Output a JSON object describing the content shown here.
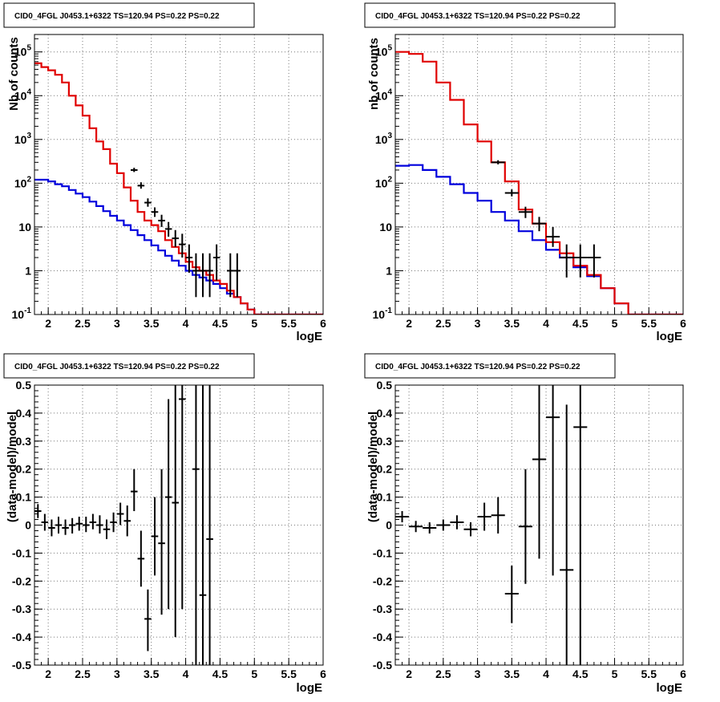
{
  "colors": {
    "data": "#000000",
    "model_total": "#e00000",
    "model_source": "#0000dd",
    "grid": "#777777",
    "frame": "#000000"
  },
  "chart_data": [
    {
      "type": "histogram",
      "title": "CID0_4FGL J0453.1+6322 TS=120.94 PS=0.22 PS=0.22",
      "xlabel": "logE",
      "ylabel": "Nb of counts",
      "xscale": "linear",
      "yscale": "log",
      "xlim": [
        1.8,
        6.0
      ],
      "ylim": [
        0.1,
        250000
      ],
      "xticks": [
        "2",
        "2.5",
        "3",
        "3.5",
        "4",
        "4.5",
        "5",
        "5.5",
        "6"
      ],
      "yticks": [
        "10^-1",
        "1",
        "10",
        "10^2",
        "10^3",
        "10^4",
        "10^5"
      ],
      "grid": true,
      "series": [
        {
          "kind": "model_total",
          "bin_edges": [
            1.8,
            1.9,
            2.0,
            2.1,
            2.2,
            2.3,
            2.4,
            2.5,
            2.6,
            2.7,
            2.8,
            2.9,
            3.0,
            3.1,
            3.2,
            3.3,
            3.4,
            3.5,
            3.6,
            3.7,
            3.8,
            3.9,
            4.0,
            4.1,
            4.2,
            4.3,
            4.4,
            4.5,
            4.6,
            4.7,
            4.8,
            4.9,
            5.0,
            5.1,
            5.2,
            5.3,
            5.4,
            5.5,
            5.6,
            5.7,
            5.8,
            5.9,
            6.0
          ],
          "values": [
            55000,
            45000,
            38000,
            30000,
            20000,
            10000,
            6000,
            3500,
            1800,
            900,
            600,
            280,
            170,
            80,
            40,
            22,
            14,
            11,
            8,
            5,
            3.5,
            2.5,
            1.6,
            1.2,
            1.0,
            0.8,
            0.6,
            0.5,
            0.35,
            0.25,
            0.18,
            0.13,
            0.1,
            0.1,
            0.1,
            0.1,
            0.1,
            0.1,
            0.1,
            0.1,
            0.1,
            0.1
          ]
        },
        {
          "kind": "model_source",
          "bin_edges": [
            1.8,
            1.9,
            2.0,
            2.1,
            2.2,
            2.3,
            2.4,
            2.5,
            2.6,
            2.7,
            2.8,
            2.9,
            3.0,
            3.1,
            3.2,
            3.3,
            3.4,
            3.5,
            3.6,
            3.7,
            3.8,
            3.9,
            4.0,
            4.1,
            4.2,
            4.3,
            4.4,
            4.5,
            4.6,
            4.7,
            4.8,
            4.9,
            5.0,
            5.1,
            5.2,
            5.3,
            5.4,
            5.5,
            5.6,
            5.7,
            5.8,
            5.9,
            6.0
          ],
          "values": [
            120,
            120,
            110,
            95,
            85,
            70,
            58,
            48,
            38,
            30,
            23,
            18,
            14,
            11,
            8.5,
            6.5,
            5,
            3.8,
            2.9,
            2.2,
            1.7,
            1.3,
            1.0,
            0.8,
            0.7,
            0.6,
            0.5,
            0.4,
            0.3,
            0.25,
            0.18,
            0.13,
            0.1,
            0.1,
            0.1,
            0.1,
            0.1,
            0.1,
            0.1,
            0.1,
            0.1,
            0.1
          ]
        },
        {
          "kind": "data",
          "points": [
            {
              "x": 3.25,
              "y": 200,
              "lo": 180,
              "hi": 225,
              "xerr": 0.05
            },
            {
              "x": 3.35,
              "y": 88,
              "lo": 75,
              "hi": 105,
              "xerr": 0.05
            },
            {
              "x": 3.45,
              "y": 36,
              "lo": 29,
              "hi": 45,
              "xerr": 0.05
            },
            {
              "x": 3.55,
              "y": 22,
              "lo": 17,
              "hi": 28,
              "xerr": 0.05
            },
            {
              "x": 3.65,
              "y": 14,
              "lo": 10,
              "hi": 19,
              "xerr": 0.05
            },
            {
              "x": 3.75,
              "y": 9,
              "lo": 6,
              "hi": 13,
              "xerr": 0.05
            },
            {
              "x": 3.85,
              "y": 5.5,
              "lo": 3.5,
              "hi": 8.5,
              "xerr": 0.05
            },
            {
              "x": 3.95,
              "y": 4,
              "lo": 2,
              "hi": 7,
              "xerr": 0.05
            },
            {
              "x": 4.05,
              "y": 2,
              "lo": 0.9,
              "hi": 4,
              "xerr": 0.05
            },
            {
              "x": 4.15,
              "y": 1,
              "lo": 0.25,
              "hi": 2.5,
              "xerr": 0.05
            },
            {
              "x": 4.25,
              "y": 1,
              "lo": 0.25,
              "hi": 2.5,
              "xerr": 0.05
            },
            {
              "x": 4.35,
              "y": 1,
              "lo": 0.25,
              "hi": 2.5,
              "xerr": 0.05
            },
            {
              "x": 4.45,
              "y": 2,
              "lo": 0.6,
              "hi": 4,
              "xerr": 0.05
            },
            {
              "x": 4.65,
              "y": 1,
              "lo": 0.25,
              "hi": 2.5,
              "xerr": 0.05
            },
            {
              "x": 4.75,
              "y": 1,
              "lo": 0.25,
              "hi": 2.5,
              "xerr": 0.05
            }
          ]
        }
      ]
    },
    {
      "type": "histogram",
      "title": "CID0_4FGL J0453.1+6322 TS=120.94 PS=0.22 PS=0.22",
      "xlabel": "logE",
      "ylabel": "nb of counts",
      "xscale": "linear",
      "yscale": "log",
      "xlim": [
        1.8,
        6.0
      ],
      "ylim": [
        0.1,
        250000
      ],
      "xticks": [
        "2",
        "2.5",
        "3",
        "3.5",
        "4",
        "4.5",
        "5",
        "5.5",
        "6"
      ],
      "yticks": [
        "10^-1",
        "1",
        "10",
        "10^2",
        "10^3",
        "10^4",
        "10^5"
      ],
      "grid": true,
      "series": [
        {
          "kind": "model_total",
          "bin_edges": [
            1.8,
            2.0,
            2.2,
            2.4,
            2.6,
            2.8,
            3.0,
            3.2,
            3.4,
            3.6,
            3.8,
            4.0,
            4.2,
            4.4,
            4.6,
            4.8,
            5.0,
            5.2,
            5.4,
            5.6,
            5.8,
            6.0
          ],
          "values": [
            100000,
            90000,
            60000,
            20000,
            8000,
            2200,
            900,
            300,
            110,
            25,
            12,
            4.5,
            2.5,
            1.3,
            0.8,
            0.4,
            0.18,
            0.1,
            0.1,
            0.1,
            0.1
          ]
        },
        {
          "kind": "model_source",
          "bin_edges": [
            1.8,
            2.0,
            2.2,
            2.4,
            2.6,
            2.8,
            3.0,
            3.2,
            3.4,
            3.6,
            3.8,
            4.0,
            4.2,
            4.4,
            4.6,
            4.8,
            5.0,
            5.2,
            5.4,
            5.6,
            5.8,
            6.0
          ],
          "values": [
            250,
            260,
            200,
            140,
            95,
            60,
            40,
            22,
            14,
            8,
            5,
            3,
            2,
            1.2,
            0.75,
            0.4,
            0.18,
            0.1,
            0.1,
            0.1,
            0.1
          ]
        },
        {
          "kind": "data",
          "points": [
            {
              "x": 3.3,
              "y": 300,
              "lo": 270,
              "hi": 335,
              "xerr": 0.1
            },
            {
              "x": 3.5,
              "y": 60,
              "lo": 50,
              "hi": 72,
              "xerr": 0.1
            },
            {
              "x": 3.7,
              "y": 22,
              "lo": 16,
              "hi": 29,
              "xerr": 0.1
            },
            {
              "x": 3.9,
              "y": 12,
              "lo": 8,
              "hi": 17,
              "xerr": 0.1
            },
            {
              "x": 4.1,
              "y": 6,
              "lo": 3.5,
              "hi": 10,
              "xerr": 0.1
            },
            {
              "x": 4.3,
              "y": 2,
              "lo": 0.7,
              "hi": 4,
              "xerr": 0.1
            },
            {
              "x": 4.5,
              "y": 2,
              "lo": 0.7,
              "hi": 4,
              "xerr": 0.1
            },
            {
              "x": 4.7,
              "y": 2,
              "lo": 0.7,
              "hi": 4,
              "xerr": 0.1
            }
          ]
        }
      ]
    },
    {
      "type": "scatter",
      "title": "CID0_4FGL J0453.1+6322 TS=120.94 PS=0.22 PS=0.22",
      "xlabel": "logE",
      "ylabel": "(data-model)/model",
      "xscale": "linear",
      "yscale": "linear",
      "xlim": [
        1.8,
        6.0
      ],
      "ylim": [
        -0.5,
        0.5
      ],
      "xticks": [
        "2",
        "2.5",
        "3",
        "3.5",
        "4",
        "4.5",
        "5",
        "5.5",
        "6"
      ],
      "yticks": [
        "-0.5",
        "-0.4",
        "-0.3",
        "-0.2",
        "-0.1",
        "0",
        "0.1",
        "0.2",
        "0.3",
        "0.4",
        "0.5"
      ],
      "grid": true,
      "points": [
        {
          "x": 1.85,
          "y": 0.05,
          "lo": 0.025,
          "hi": 0.075,
          "xerr": 0.05
        },
        {
          "x": 1.95,
          "y": 0.01,
          "lo": -0.02,
          "hi": 0.04,
          "xerr": 0.05
        },
        {
          "x": 2.05,
          "y": -0.01,
          "lo": -0.04,
          "hi": 0.02,
          "xerr": 0.05
        },
        {
          "x": 2.15,
          "y": 0.0,
          "lo": -0.03,
          "hi": 0.03,
          "xerr": 0.05
        },
        {
          "x": 2.25,
          "y": -0.01,
          "lo": -0.035,
          "hi": 0.02,
          "xerr": 0.05
        },
        {
          "x": 2.35,
          "y": 0.0,
          "lo": -0.03,
          "hi": 0.025,
          "xerr": 0.05
        },
        {
          "x": 2.45,
          "y": 0.005,
          "lo": -0.02,
          "hi": 0.03,
          "xerr": 0.05
        },
        {
          "x": 2.55,
          "y": 0.0,
          "lo": -0.025,
          "hi": 0.03,
          "xerr": 0.05
        },
        {
          "x": 2.65,
          "y": 0.01,
          "lo": -0.015,
          "hi": 0.04,
          "xerr": 0.05
        },
        {
          "x": 2.75,
          "y": 0.0,
          "lo": -0.03,
          "hi": 0.035,
          "xerr": 0.05
        },
        {
          "x": 2.85,
          "y": -0.015,
          "lo": -0.05,
          "hi": 0.02,
          "xerr": 0.05
        },
        {
          "x": 2.95,
          "y": 0.01,
          "lo": -0.025,
          "hi": 0.045,
          "xerr": 0.05
        },
        {
          "x": 3.05,
          "y": 0.04,
          "lo": 0.0,
          "hi": 0.08,
          "xerr": 0.05
        },
        {
          "x": 3.15,
          "y": 0.015,
          "lo": -0.04,
          "hi": 0.07,
          "xerr": 0.05
        },
        {
          "x": 3.25,
          "y": 0.12,
          "lo": 0.05,
          "hi": 0.2,
          "xerr": 0.05
        },
        {
          "x": 3.35,
          "y": -0.12,
          "lo": -0.22,
          "hi": -0.02,
          "xerr": 0.05
        },
        {
          "x": 3.45,
          "y": -0.335,
          "lo": -0.45,
          "hi": -0.23,
          "xerr": 0.05
        },
        {
          "x": 3.55,
          "y": -0.04,
          "lo": -0.18,
          "hi": 0.1,
          "xerr": 0.05
        },
        {
          "x": 3.65,
          "y": -0.065,
          "lo": -0.32,
          "hi": 0.2,
          "xerr": 0.05
        },
        {
          "x": 3.75,
          "y": 0.1,
          "lo": -0.3,
          "hi": 0.45,
          "xerr": 0.05
        },
        {
          "x": 3.85,
          "y": 0.08,
          "lo": -0.4,
          "hi": 0.6,
          "xerr": 0.05
        },
        {
          "x": 3.95,
          "y": 0.45,
          "lo": -0.3,
          "hi": 1.1,
          "xerr": 0.05
        },
        {
          "x": 4.15,
          "y": 0.2,
          "lo": -0.6,
          "hi": 1.0,
          "xerr": 0.05
        },
        {
          "x": 4.25,
          "y": -0.25,
          "lo": -0.6,
          "hi": 1.0,
          "xerr": 0.05
        },
        {
          "x": 4.35,
          "y": -0.05,
          "lo": -0.6,
          "hi": 1.0,
          "xerr": 0.05
        }
      ]
    },
    {
      "type": "scatter",
      "title": "CID0_4FGL J0453.1+6322 TS=120.94 PS=0.22 PS=0.22",
      "xlabel": "logE",
      "ylabel": "(data-model)/model",
      "xscale": "linear",
      "yscale": "linear",
      "xlim": [
        1.8,
        6.0
      ],
      "ylim": [
        -0.5,
        0.5
      ],
      "xticks": [
        "2",
        "2.5",
        "3",
        "3.5",
        "4",
        "4.5",
        "5",
        "5.5",
        "6"
      ],
      "yticks": [
        "-0.5",
        "-0.4",
        "-0.3",
        "-0.2",
        "-0.1",
        "0",
        "0.1",
        "0.2",
        "0.3",
        "0.4",
        "0.5"
      ],
      "grid": true,
      "points": [
        {
          "x": 1.9,
          "y": 0.03,
          "lo": 0.01,
          "hi": 0.05,
          "xerr": 0.1
        },
        {
          "x": 2.1,
          "y": -0.005,
          "lo": -0.025,
          "hi": 0.015,
          "xerr": 0.1
        },
        {
          "x": 2.3,
          "y": -0.01,
          "lo": -0.03,
          "hi": 0.01,
          "xerr": 0.1
        },
        {
          "x": 2.5,
          "y": 0.0,
          "lo": -0.02,
          "hi": 0.02,
          "xerr": 0.1
        },
        {
          "x": 2.7,
          "y": 0.01,
          "lo": -0.015,
          "hi": 0.035,
          "xerr": 0.1
        },
        {
          "x": 2.9,
          "y": -0.015,
          "lo": -0.04,
          "hi": 0.01,
          "xerr": 0.1
        },
        {
          "x": 3.1,
          "y": 0.03,
          "lo": -0.02,
          "hi": 0.08,
          "xerr": 0.1
        },
        {
          "x": 3.3,
          "y": 0.035,
          "lo": -0.03,
          "hi": 0.1,
          "xerr": 0.1
        },
        {
          "x": 3.5,
          "y": -0.245,
          "lo": -0.35,
          "hi": -0.145,
          "xerr": 0.1
        },
        {
          "x": 3.7,
          "y": -0.005,
          "lo": -0.21,
          "hi": 0.2,
          "xerr": 0.1
        },
        {
          "x": 3.9,
          "y": 0.235,
          "lo": -0.12,
          "hi": 0.6,
          "xerr": 0.1
        },
        {
          "x": 4.1,
          "y": 0.385,
          "lo": -0.18,
          "hi": 0.9,
          "xerr": 0.1
        },
        {
          "x": 4.3,
          "y": -0.16,
          "lo": -0.6,
          "hi": 0.43,
          "xerr": 0.1
        },
        {
          "x": 4.5,
          "y": 0.35,
          "lo": -0.6,
          "hi": 1.0,
          "xerr": 0.1
        }
      ]
    }
  ]
}
